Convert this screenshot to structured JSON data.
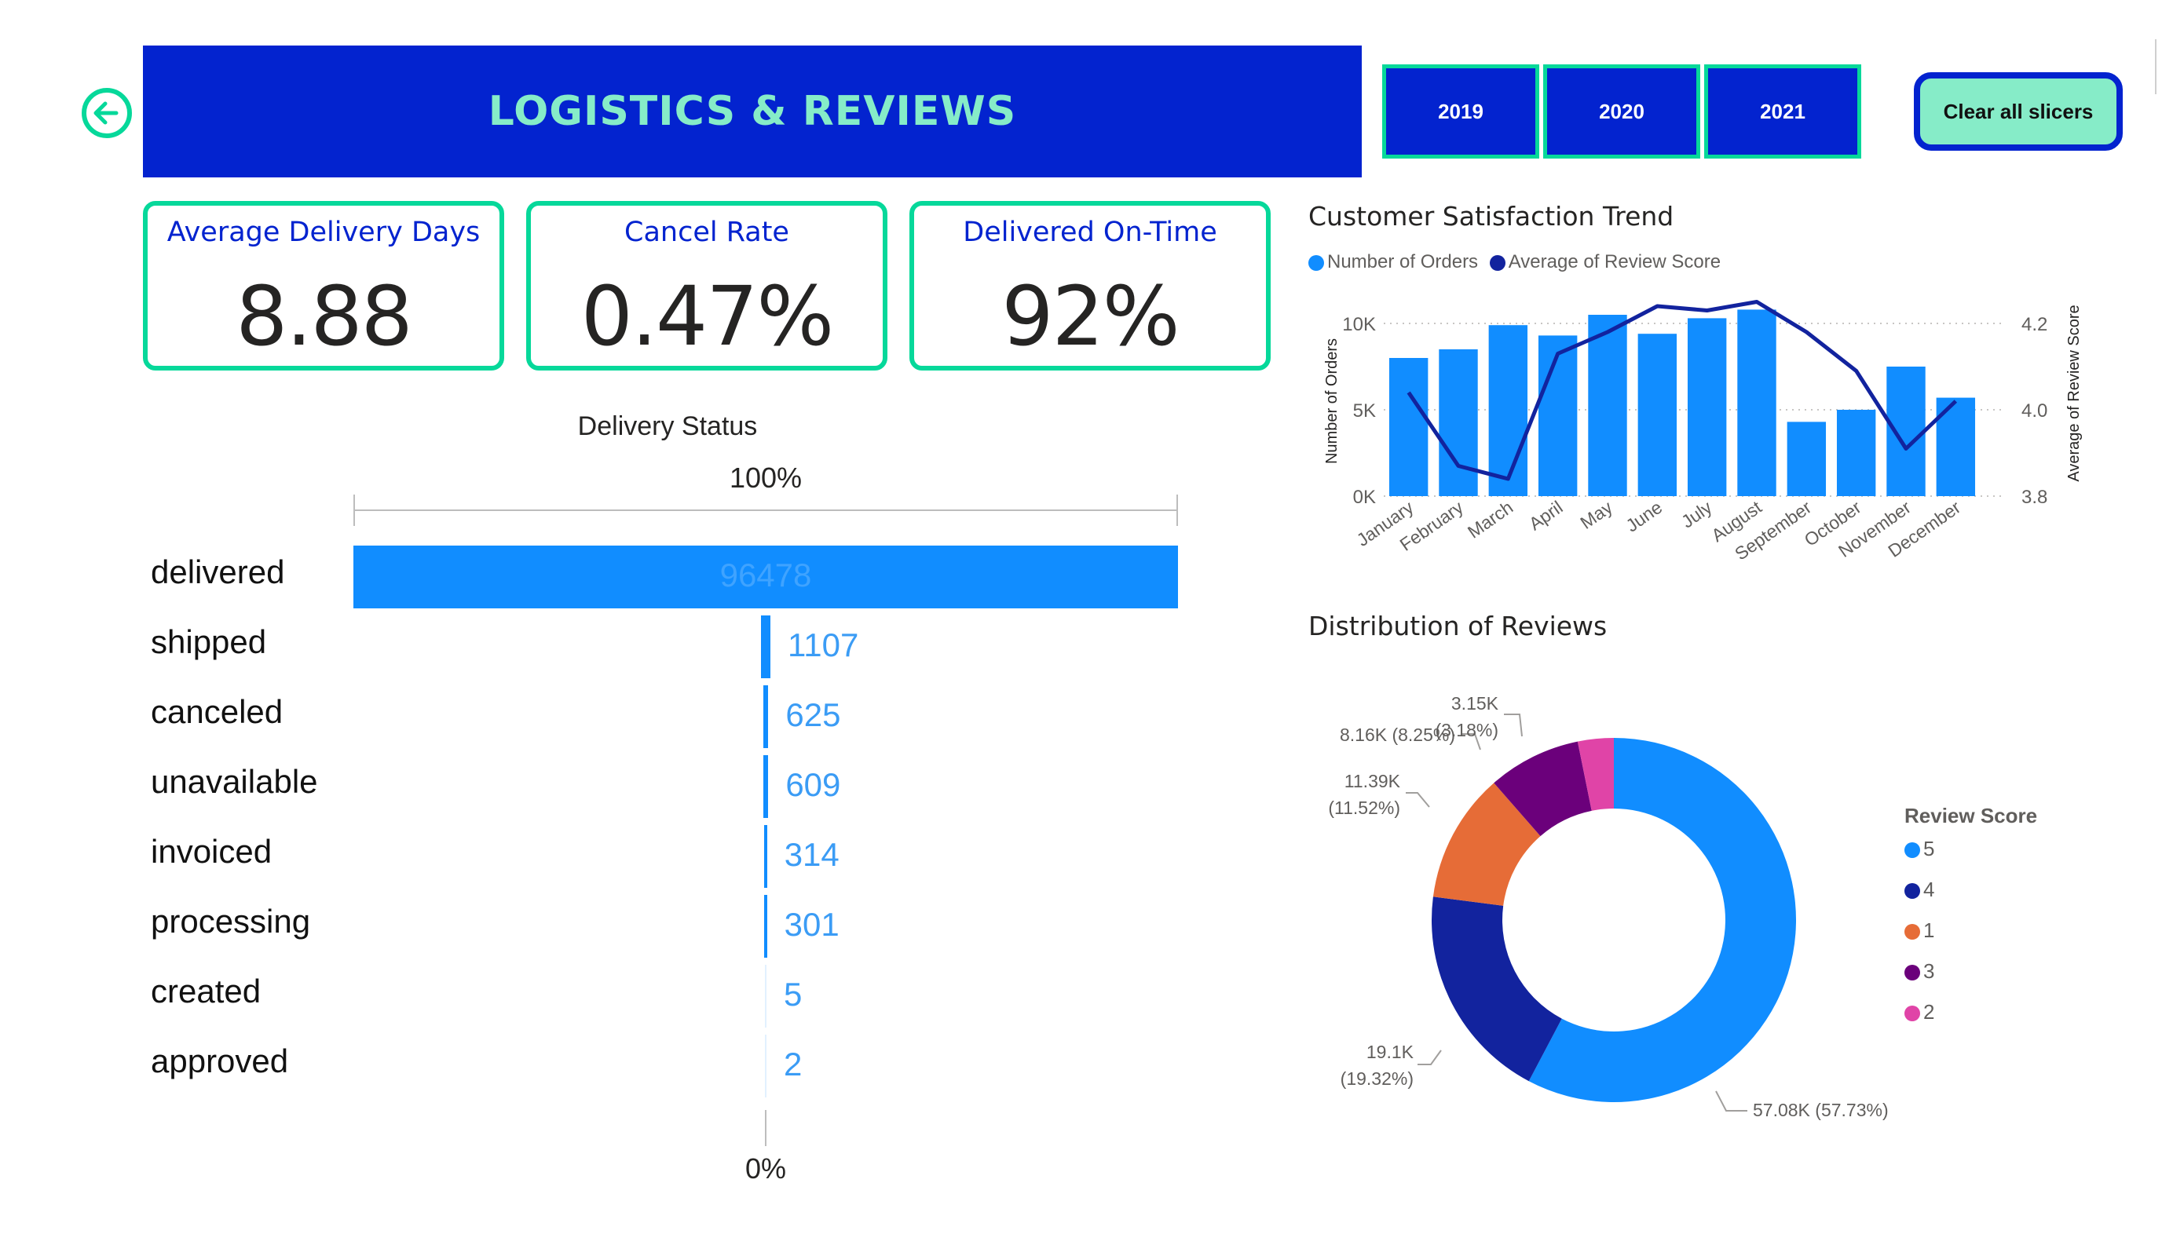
{
  "header": {
    "title": "LOGISTICS & REVIEWS",
    "back_icon": "arrow-left-circle-icon",
    "year_slicers": [
      {
        "label": "2019"
      },
      {
        "label": "2020"
      },
      {
        "label": "2021"
      }
    ],
    "clear_button": "Clear all slicers"
  },
  "colors": {
    "banner": "#0323cf",
    "accent": "#06d89a",
    "mint": "#86ecc8",
    "bar_blue": "#118dff",
    "line_navy": "#12239e",
    "score_5": "#118dff",
    "score_4": "#12239e",
    "score_1": "#e66c37",
    "score_3": "#6b007b",
    "score_2": "#e044a7"
  },
  "kpis": [
    {
      "label": "Average Delivery Days",
      "value": "8.88"
    },
    {
      "label": "Cancel Rate",
      "value": "0.47%"
    },
    {
      "label": "Delivered On-Time",
      "value": "92%"
    }
  ],
  "chart_data": [
    {
      "type": "funnel",
      "title": "Delivery Status",
      "top_label": "100%",
      "bottom_label": "0%",
      "categories": [
        "delivered",
        "shipped",
        "canceled",
        "unavailable",
        "invoiced",
        "processing",
        "created",
        "approved"
      ],
      "values": [
        96478,
        1107,
        625,
        609,
        314,
        301,
        5,
        2
      ],
      "value_labels": [
        "96478",
        "1107",
        "625",
        "609",
        "314",
        "301",
        "5",
        "2"
      ]
    },
    {
      "type": "bar+line",
      "title": "Customer Satisfaction Trend",
      "legend": [
        "Number of Orders",
        "Average of Review Score"
      ],
      "legend_position": "top-left",
      "categories": [
        "January",
        "February",
        "March",
        "April",
        "May",
        "June",
        "July",
        "August",
        "September",
        "October",
        "November",
        "December"
      ],
      "series": [
        {
          "name": "Number of Orders",
          "type": "bar",
          "axis": "left",
          "values": [
            8000,
            8500,
            9900,
            9300,
            10500,
            9400,
            10300,
            10800,
            4300,
            5000,
            7500,
            5700
          ]
        },
        {
          "name": "Average of Review Score",
          "type": "line",
          "axis": "right",
          "values": [
            4.04,
            3.87,
            3.84,
            4.13,
            4.18,
            4.24,
            4.23,
            4.25,
            4.18,
            4.09,
            3.91,
            4.02
          ]
        }
      ],
      "ylabel_left": "Number of Orders",
      "ylabel_right": "Average of Review Score",
      "ylim_left": [
        0,
        11000
      ],
      "yticks_left": [
        "0K",
        "5K",
        "10K"
      ],
      "ylim_right": [
        3.8,
        4.2
      ],
      "yticks_right": [
        "3.8",
        "4.0",
        "4.2"
      ],
      "grid": true
    },
    {
      "type": "pie",
      "donut": true,
      "title": "Distribution of Reviews",
      "legend_title": "Review Score",
      "legend_position": "right",
      "slices": [
        {
          "label": "5",
          "value": 57080,
          "value_label": "57.08K",
          "pct_label": "(57.73%)",
          "color": "#118dff"
        },
        {
          "label": "4",
          "value": 19100,
          "value_label": "19.1K",
          "pct_label": "(19.32%)",
          "color": "#12239e"
        },
        {
          "label": "1",
          "value": 11390,
          "value_label": "11.39K",
          "pct_label": "(11.52%)",
          "color": "#e66c37"
        },
        {
          "label": "3",
          "value": 8160,
          "value_label": "8.16K",
          "pct_label": "(8.25%)",
          "color": "#6b007b"
        },
        {
          "label": "2",
          "value": 3150,
          "value_label": "3.15K",
          "pct_label": "(3.18%)",
          "color": "#e044a7"
        }
      ]
    }
  ]
}
